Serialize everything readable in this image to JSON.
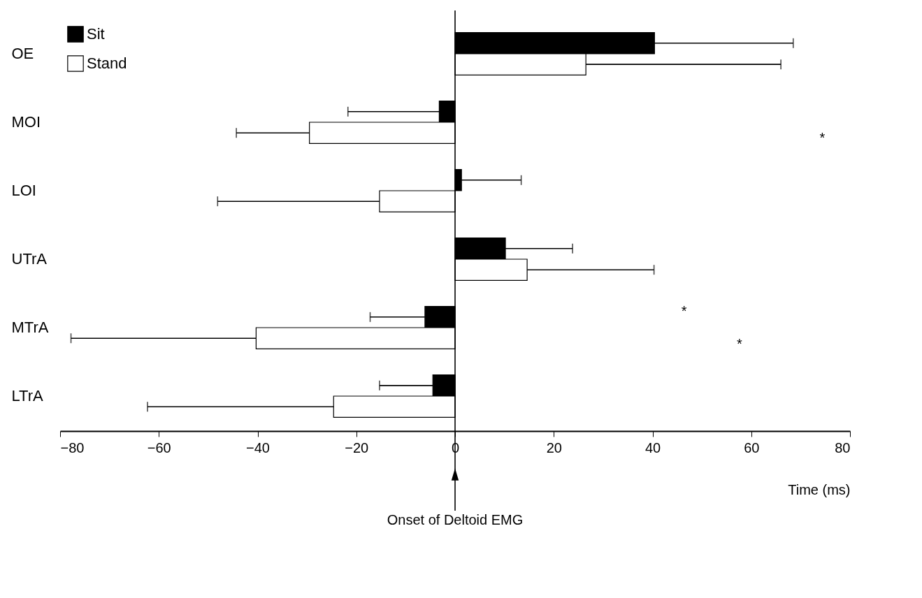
{
  "chart_data": {
    "type": "bar",
    "orientation": "horizontal",
    "xlabel": "Time (ms)",
    "categories": [
      "OE",
      "MOI",
      "LOI",
      "UTrA",
      "MTrA",
      "LTrA"
    ],
    "series": [
      {
        "name": "Sit",
        "color": "#000000",
        "values": [
          40.4,
          -3.2,
          1.3,
          10.2,
          -6.1,
          -4.5
        ],
        "errors": [
          [
            40.4,
            68.5
          ],
          [
            -21.7,
            -3.2
          ],
          [
            1.3,
            13.4
          ],
          [
            10.2,
            23.8
          ],
          [
            -17.2,
            -6.1
          ],
          [
            -15.3,
            -4.5
          ]
        ]
      },
      {
        "name": "Stand",
        "color": "#ffffff",
        "values": [
          26.5,
          -29.5,
          -15.3,
          14.6,
          -40.3,
          -24.6
        ],
        "errors": [
          [
            26.5,
            66
          ],
          [
            -44.3,
            -29.5
          ],
          [
            -48.1,
            -15.3
          ],
          [
            14.6,
            40.3
          ],
          [
            -77.8,
            -40.3
          ],
          [
            -62.3,
            -24.6
          ]
        ]
      }
    ],
    "xlim": [
      -80,
      80
    ],
    "xticks": [
      -80,
      -60,
      -40,
      -20,
      0,
      20,
      40,
      60,
      80
    ],
    "legend": "top left",
    "grid": false,
    "ref_lines": [
      {
        "axis": "x",
        "value": 0,
        "label": "Onset of Deltoid EMG"
      }
    ],
    "annotations": [
      "*",
      "*",
      "*"
    ]
  }
}
